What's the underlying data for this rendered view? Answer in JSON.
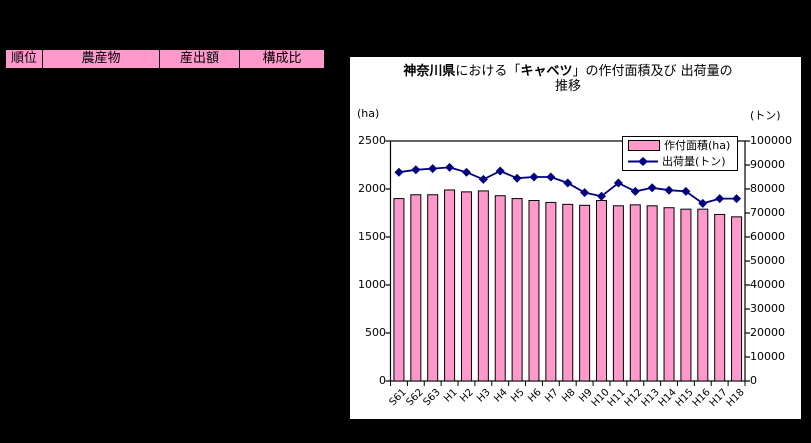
{
  "window": {
    "background": "#000000"
  },
  "table": {
    "header_bg": "#FF99CC",
    "headers": [
      "順位",
      "農産物",
      "産出額",
      "構成比"
    ]
  },
  "chart_data": {
    "type": "bar",
    "combo": "bar+line, dual axis",
    "title": "神奈川県における「キャベツ」の作付面積及び 出荷量の推移",
    "title_segments": [
      {
        "text": "神奈川県",
        "bold": true
      },
      {
        "text": "における「",
        "bold": false
      },
      {
        "text": "キャベツ",
        "bold": true
      },
      {
        "text": "」の作付面積及び 出荷量の",
        "bold": false
      }
    ],
    "title_line2": "推移",
    "categories": [
      "S61",
      "S62",
      "S63",
      "H1",
      "H2",
      "H3",
      "H4",
      "H5",
      "H6",
      "H7",
      "H8",
      "H9",
      "H10",
      "H11",
      "H12",
      "H13",
      "H14",
      "H15",
      "H16",
      "H17",
      "H18"
    ],
    "series": [
      {
        "name": "作付面積(ha)",
        "type": "bar",
        "axis": "left",
        "color": "#FF99CC",
        "values": [
          1900,
          1940,
          1940,
          1990,
          1970,
          1980,
          1930,
          1900,
          1880,
          1860,
          1840,
          1830,
          1880,
          1825,
          1835,
          1825,
          1805,
          1790,
          1790,
          1735,
          1710
        ]
      },
      {
        "name": "出荷量(トン)",
        "type": "line",
        "axis": "right",
        "color": "#000080",
        "values": [
          87000,
          88000,
          88500,
          89000,
          87000,
          84000,
          87500,
          84500,
          85000,
          85000,
          82500,
          78500,
          77000,
          82500,
          79000,
          80500,
          79500,
          79000,
          74000,
          76000,
          76000
        ]
      }
    ],
    "left_axis": {
      "label": "(ha)",
      "min": 0,
      "max": 2500,
      "step": 500
    },
    "right_axis": {
      "label": "(トン)",
      "min": 0,
      "max": 100000,
      "step": 10000
    },
    "legend_position": "top-right-inside",
    "grid": false
  }
}
